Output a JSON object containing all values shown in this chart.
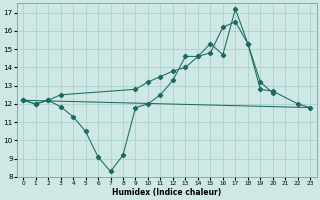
{
  "xlabel": "Humidex (Indice chaleur)",
  "bg_color": "#cde8e5",
  "grid_color": "#aaccca",
  "line_color": "#1a6b5e",
  "xlim": [
    -0.5,
    23.5
  ],
  "ylim": [
    8,
    17.5
  ],
  "yticks": [
    8,
    9,
    10,
    11,
    12,
    13,
    14,
    15,
    16,
    17
  ],
  "xticks": [
    0,
    1,
    2,
    3,
    4,
    5,
    6,
    7,
    8,
    9,
    10,
    11,
    12,
    13,
    14,
    15,
    16,
    17,
    18,
    19,
    20,
    21,
    22,
    23
  ],
  "line1_x": [
    0,
    1,
    2,
    3,
    4,
    5,
    6,
    7,
    8,
    9,
    10,
    11,
    12,
    13,
    14,
    15,
    16,
    17,
    18,
    19,
    20
  ],
  "line1_y": [
    12.2,
    12.0,
    12.2,
    11.85,
    11.3,
    10.5,
    9.1,
    8.3,
    9.2,
    11.8,
    12.0,
    12.5,
    13.3,
    14.6,
    14.6,
    15.3,
    14.7,
    17.2,
    15.3,
    13.2,
    12.6
  ],
  "line2_x": [
    0,
    1,
    2,
    3,
    9,
    10,
    11,
    12,
    13,
    14,
    15,
    16,
    17,
    18,
    19,
    20,
    22,
    23
  ],
  "line2_y": [
    12.2,
    12.0,
    12.2,
    12.5,
    12.8,
    13.2,
    13.5,
    13.8,
    14.0,
    14.6,
    14.8,
    16.2,
    16.5,
    15.3,
    12.8,
    12.7,
    12.0,
    11.8
  ],
  "line3_x": [
    0,
    23
  ],
  "line3_y": [
    12.2,
    11.8
  ]
}
